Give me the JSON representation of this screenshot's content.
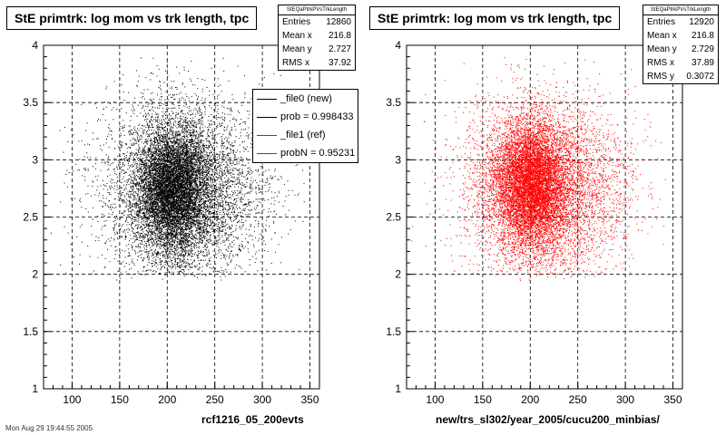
{
  "chart_data": [
    {
      "type": "scatter",
      "title": "StE primtrk: log mom vs trk length, tpc",
      "xlabel": "rcf1216_05_200evts",
      "ylabel": "",
      "xlim": [
        70,
        360
      ],
      "ylim": [
        1,
        4
      ],
      "xticks": [
        "100",
        "150",
        "200",
        "250",
        "300",
        "350"
      ],
      "yticks": [
        "1",
        "1.5",
        "2",
        "2.5",
        "3",
        "3.5",
        "4"
      ],
      "grid": true,
      "color": "#000000",
      "distribution": {
        "x_mean": 216.8,
        "x_rms": 37.92,
        "y_mean": 2.727,
        "y_rms": 0.31,
        "dense_center_x": 205,
        "dense_center_y": 2.75,
        "points_drawn": 12860
      },
      "stats": {
        "name": "StEQaPtrkPVsTrkLength",
        "rows": [
          {
            "label": "Entries",
            "value": "12860"
          },
          {
            "label": "Mean x",
            "value": "216.8"
          },
          {
            "label": "Mean y",
            "value": "2.727"
          },
          {
            "label": "RMS x",
            "value": "37.92"
          }
        ]
      },
      "legend": {
        "placement": "top-right",
        "entries": [
          {
            "label": "_file0 (new)",
            "color": "#000000"
          },
          {
            "label": "prob = 0.998433",
            "color": "#000000"
          },
          {
            "label": "_file1 (ref)",
            "color": "#ff0000"
          },
          {
            "label": "probN = 0.95231",
            "color": "#ff0000"
          }
        ]
      }
    },
    {
      "type": "scatter",
      "title": "StE primtrk: log mom vs trk length, tpc",
      "xlabel": "new/trs_sl302/year_2005/cucu200_minbias/",
      "ylabel": "",
      "xlim": [
        70,
        360
      ],
      "ylim": [
        1,
        4
      ],
      "xticks": [
        "100",
        "150",
        "200",
        "250",
        "300",
        "350"
      ],
      "yticks": [
        "1",
        "1.5",
        "2",
        "2.5",
        "3",
        "3.5",
        "4"
      ],
      "grid": true,
      "color": "#ff0000",
      "distribution": {
        "x_mean": 216.8,
        "x_rms": 37.89,
        "y_mean": 2.729,
        "y_rms": 0.3072,
        "dense_center_x": 200,
        "dense_center_y": 2.8,
        "points_drawn": 12920
      },
      "stats": {
        "name": "StEQaPtrkPVsTrkLength",
        "rows": [
          {
            "label": "Entries",
            "value": "12920"
          },
          {
            "label": "Mean x",
            "value": "216.8"
          },
          {
            "label": "Mean y",
            "value": "2.729"
          },
          {
            "label": "RMS x",
            "value": "37.89"
          },
          {
            "label": "RMS y",
            "value": "0.3072"
          }
        ]
      }
    }
  ],
  "footer_text": "Mon Aug 29 19:44:55 2005"
}
